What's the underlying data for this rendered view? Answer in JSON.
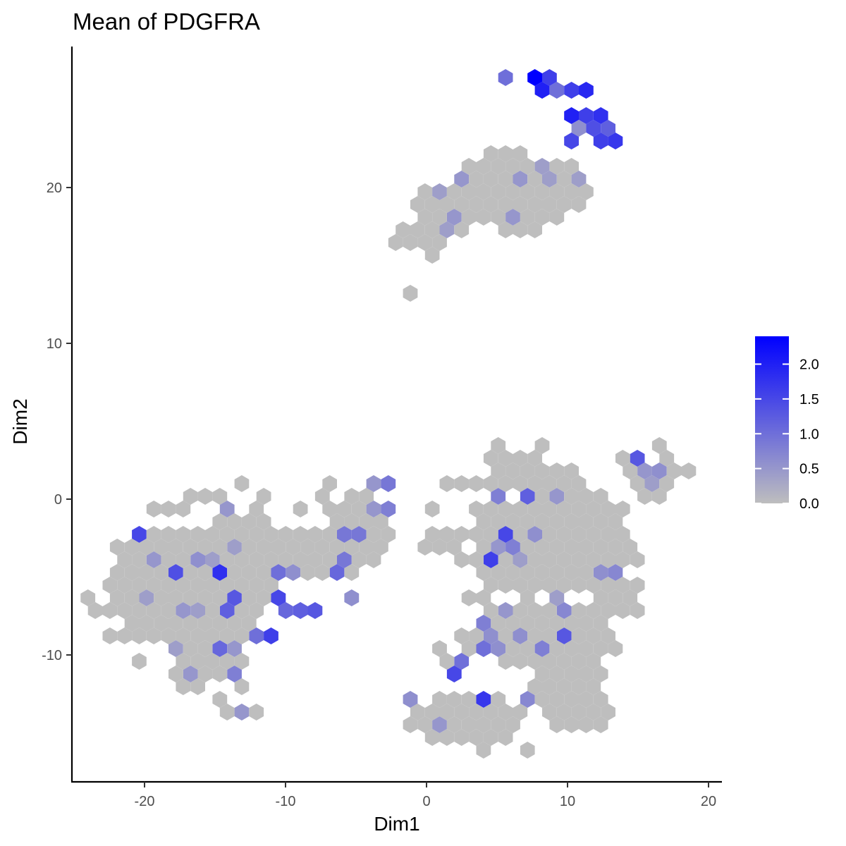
{
  "chart_data": {
    "type": "heatmap",
    "subtype": "hexbin",
    "title": "Mean of PDGFRA",
    "xlabel": "Dim1",
    "ylabel": "Dim2",
    "xlim": [
      -25.5,
      21
    ],
    "ylim": [
      -18,
      29
    ],
    "x_ticks": [
      -20,
      -10,
      0,
      10,
      20
    ],
    "y_ticks": [
      -10,
      0,
      10,
      20
    ],
    "grid": false,
    "legend": {
      "position": "right",
      "title": "",
      "min": 0,
      "max": 2.4,
      "ticks": [
        "0.0",
        "0.5",
        "1.0",
        "1.5",
        "2.0"
      ],
      "tick_values": [
        0,
        0.5,
        1.0,
        1.5,
        2.0
      ],
      "color_low": "#bebebe",
      "color_high": "#0000ff"
    },
    "hex_spacing": {
      "dx": 1.04,
      "dy": 1.0
    },
    "colored_hexes": [
      {
        "x": 6.0,
        "y": 27.0,
        "v": 1.0
      },
      {
        "x": 8.1,
        "y": 27.0,
        "v": 2.4
      },
      {
        "x": 9.1,
        "y": 27.0,
        "v": 1.6
      },
      {
        "x": 8.6,
        "y": 26.0,
        "v": 2.0
      },
      {
        "x": 9.6,
        "y": 26.0,
        "v": 1.0
      },
      {
        "x": 10.6,
        "y": 26.0,
        "v": 1.6
      },
      {
        "x": 11.7,
        "y": 26.0,
        "v": 1.9
      },
      {
        "x": 10.1,
        "y": 25.0,
        "v": 2.0
      },
      {
        "x": 11.2,
        "y": 25.0,
        "v": 1.6
      },
      {
        "x": 12.2,
        "y": 25.0,
        "v": 1.8
      },
      {
        "x": 10.6,
        "y": 24.0,
        "v": 0.6
      },
      {
        "x": 11.7,
        "y": 24.0,
        "v": 1.4
      },
      {
        "x": 12.7,
        "y": 24.0,
        "v": 1.2
      },
      {
        "x": 10.1,
        "y": 23.0,
        "v": 1.5
      },
      {
        "x": 12.2,
        "y": 23.0,
        "v": 1.6
      },
      {
        "x": 13.2,
        "y": 23.0,
        "v": 1.7
      },
      {
        "x": 15.2,
        "y": 2.6,
        "v": 1.3
      },
      {
        "x": 15.7,
        "y": 1.8,
        "v": 0.5
      },
      {
        "x": 16.7,
        "y": 1.8,
        "v": 0.6
      },
      {
        "x": 16.2,
        "y": 0.8,
        "v": 0.4
      },
      {
        "x": 5.3,
        "y": 0.0,
        "v": 0.8
      },
      {
        "x": 7.4,
        "y": 0.0,
        "v": 1.2
      },
      {
        "x": 9.5,
        "y": 0.0,
        "v": 0.5
      },
      {
        "x": 5.8,
        "y": -2.0,
        "v": 1.5
      },
      {
        "x": 7.9,
        "y": -2.0,
        "v": 0.6
      },
      {
        "x": 5.3,
        "y": -3.0,
        "v": 0.5
      },
      {
        "x": 6.3,
        "y": -3.0,
        "v": 0.8
      },
      {
        "x": 4.7,
        "y": -4.0,
        "v": 1.6
      },
      {
        "x": 6.8,
        "y": -4.0,
        "v": 0.4
      },
      {
        "x": 12.5,
        "y": -5.0,
        "v": 0.6
      },
      {
        "x": 13.5,
        "y": -5.0,
        "v": 0.7
      },
      {
        "x": 8.9,
        "y": -6.5,
        "v": 0.4
      },
      {
        "x": 9.4,
        "y": -7.0,
        "v": 0.7
      },
      {
        "x": 5.3,
        "y": -7.5,
        "v": 0.5
      },
      {
        "x": 4.2,
        "y": -8.0,
        "v": 0.8
      },
      {
        "x": 6.8,
        "y": -8.5,
        "v": 0.6
      },
      {
        "x": 9.4,
        "y": -8.5,
        "v": 1.3
      },
      {
        "x": 4.7,
        "y": -9.0,
        "v": 0.6
      },
      {
        "x": 4.2,
        "y": -9.5,
        "v": 1.0
      },
      {
        "x": 5.3,
        "y": -9.5,
        "v": 0.6
      },
      {
        "x": 8.4,
        "y": -9.5,
        "v": 0.8
      },
      {
        "x": 2.7,
        "y": -10.5,
        "v": 1.0
      },
      {
        "x": 2.2,
        "y": -11.5,
        "v": 1.5
      },
      {
        "x": 3.7,
        "y": -12.5,
        "v": 1.7
      },
      {
        "x": 1.7,
        "y": -11.5,
        "v": 0.5
      },
      {
        "x": 7.4,
        "y": -12.5,
        "v": 0.7
      },
      {
        "x": -0.9,
        "y": -12.5,
        "v": 0.6
      },
      {
        "x": 0.7,
        "y": -14.5,
        "v": 0.5
      },
      {
        "x": -20.5,
        "y": -2.0,
        "v": 1.5
      },
      {
        "x": -19.0,
        "y": -3.5,
        "v": 0.5
      },
      {
        "x": -18.0,
        "y": -5.0,
        "v": 1.4
      },
      {
        "x": -16.5,
        "y": -3.5,
        "v": 0.6
      },
      {
        "x": -15.0,
        "y": -5.0,
        "v": 1.8
      },
      {
        "x": -15.5,
        "y": -4.0,
        "v": 0.4
      },
      {
        "x": -14.5,
        "y": -1.0,
        "v": 0.5
      },
      {
        "x": -13.5,
        "y": -3.0,
        "v": 0.4
      },
      {
        "x": -19.5,
        "y": -6.0,
        "v": 0.4
      },
      {
        "x": -17.5,
        "y": -7.0,
        "v": 0.5
      },
      {
        "x": -16.0,
        "y": -7.0,
        "v": 0.4
      },
      {
        "x": -13.5,
        "y": -6.5,
        "v": 1.3
      },
      {
        "x": -14.0,
        "y": -7.5,
        "v": 1.2
      },
      {
        "x": -12.0,
        "y": -8.5,
        "v": 1.0
      },
      {
        "x": -11.0,
        "y": -8.5,
        "v": 1.6
      },
      {
        "x": -14.5,
        "y": -9.5,
        "v": 1.1
      },
      {
        "x": -13.5,
        "y": -9.5,
        "v": 0.5
      },
      {
        "x": -17.5,
        "y": -9.5,
        "v": 0.4
      },
      {
        "x": -14.0,
        "y": -11.5,
        "v": 0.8
      },
      {
        "x": -17.0,
        "y": -11.5,
        "v": 0.5
      },
      {
        "x": -13.5,
        "y": -13.5,
        "v": 0.5
      },
      {
        "x": -11.0,
        "y": -6.0,
        "v": 1.5
      },
      {
        "x": -10.5,
        "y": -5.0,
        "v": 1.0
      },
      {
        "x": -9.5,
        "y": -5.0,
        "v": 0.6
      },
      {
        "x": -10.0,
        "y": -7.0,
        "v": 1.1
      },
      {
        "x": -9.0,
        "y": -7.0,
        "v": 1.2
      },
      {
        "x": -8.0,
        "y": -7.0,
        "v": 1.3
      },
      {
        "x": -6.0,
        "y": -2.0,
        "v": 0.9
      },
      {
        "x": -5.0,
        "y": -2.0,
        "v": 0.9
      },
      {
        "x": -5.5,
        "y": -4.0,
        "v": 0.9
      },
      {
        "x": -6.0,
        "y": -5.0,
        "v": 1.1
      },
      {
        "x": -5.5,
        "y": -6.0,
        "v": 0.6
      },
      {
        "x": -3.5,
        "y": -1.0,
        "v": 0.5
      },
      {
        "x": -2.5,
        "y": -1.0,
        "v": 0.8
      },
      {
        "x": -3.5,
        "y": 0.8,
        "v": 0.5
      },
      {
        "x": -2.5,
        "y": 0.8,
        "v": 0.9
      },
      {
        "x": 2.5,
        "y": 20.5,
        "v": 0.5
      },
      {
        "x": 1.0,
        "y": 19.5,
        "v": 0.4
      },
      {
        "x": 1.5,
        "y": 18.5,
        "v": 0.5
      },
      {
        "x": 1.0,
        "y": 17.5,
        "v": 0.4
      },
      {
        "x": 6.5,
        "y": 20.5,
        "v": 0.5
      },
      {
        "x": 8.5,
        "y": 20.5,
        "v": 0.4
      },
      {
        "x": 6.5,
        "y": 18.5,
        "v": 0.5
      },
      {
        "x": 8.0,
        "y": 21.0,
        "v": 0.4
      },
      {
        "x": 10.5,
        "y": 20.5,
        "v": 0.4
      }
    ],
    "gray_regions": [
      {
        "cx": 6.5,
        "cy": 19.5,
        "rx": 4.2,
        "ry": 2.1,
        "angle": 0
      },
      {
        "cx": 2.0,
        "cy": 18.5,
        "rx": 2.8,
        "ry": 1.3,
        "angle": 0
      },
      {
        "cx": -1.0,
        "cy": 16.8,
        "rx": 1.6,
        "ry": 0.9,
        "angle": 0
      },
      {
        "cx": 9.8,
        "cy": 20.6,
        "rx": 1.6,
        "ry": 1.0,
        "angle": 0
      },
      {
        "cx": 5.5,
        "cy": 22.1,
        "rx": 1.0,
        "ry": 0.6,
        "angle": 0
      },
      {
        "cx": -17.0,
        "cy": -5.5,
        "rx": 5.8,
        "ry": 3.6,
        "angle": 0
      },
      {
        "cx": -13.5,
        "cy": -4.0,
        "rx": 3.2,
        "ry": 3.2,
        "angle": 0
      },
      {
        "cx": -15.5,
        "cy": -9.8,
        "rx": 2.6,
        "ry": 1.8,
        "angle": 0
      },
      {
        "cx": -9.5,
        "cy": -3.6,
        "rx": 2.8,
        "ry": 1.8,
        "angle": 0
      },
      {
        "cx": -7.0,
        "cy": -3.8,
        "rx": 2.2,
        "ry": 1.6,
        "angle": 0
      },
      {
        "cx": -5.0,
        "cy": -1.5,
        "rx": 2.0,
        "ry": 1.6,
        "angle": 0
      },
      {
        "cx": -4.0,
        "cy": -3.0,
        "rx": 1.5,
        "ry": 1.2,
        "angle": 0
      },
      {
        "cx": -20.5,
        "cy": -6.0,
        "rx": 2.2,
        "ry": 1.6,
        "angle": 0
      },
      {
        "cx": 7.0,
        "cy": -3.0,
        "rx": 3.8,
        "ry": 3.0,
        "angle": 0
      },
      {
        "cx": 11.0,
        "cy": -2.5,
        "rx": 3.3,
        "ry": 3.0,
        "angle": 0
      },
      {
        "cx": 9.0,
        "cy": 0.5,
        "rx": 2.2,
        "ry": 2.0,
        "angle": 0
      },
      {
        "cx": 6.5,
        "cy": 2.0,
        "rx": 1.7,
        "ry": 1.0,
        "angle": 0
      },
      {
        "cx": 6.0,
        "cy": -8.5,
        "rx": 2.6,
        "ry": 1.7,
        "angle": 0
      },
      {
        "cx": 10.0,
        "cy": -11.0,
        "rx": 2.6,
        "ry": 2.6,
        "angle": 0
      },
      {
        "cx": 10.5,
        "cy": -8.0,
        "rx": 2.2,
        "ry": 1.5,
        "angle": 0
      },
      {
        "cx": 3.0,
        "cy": -14.0,
        "rx": 3.5,
        "ry": 1.3,
        "angle": 0
      },
      {
        "cx": 5.0,
        "cy": -15.0,
        "rx": 1.3,
        "ry": 1.0,
        "angle": 0
      },
      {
        "cx": 10.5,
        "cy": -13.5,
        "rx": 2.2,
        "ry": 1.0,
        "angle": 0
      },
      {
        "cx": 16.0,
        "cy": 1.5,
        "rx": 1.7,
        "ry": 1.0,
        "angle": 0
      },
      {
        "cx": 0.5,
        "cy": -3.0,
        "rx": 1.2,
        "ry": 0.8,
        "angle": 0
      },
      {
        "cx": 13.5,
        "cy": -6.0,
        "rx": 1.8,
        "ry": 1.2,
        "angle": 0
      }
    ],
    "gray_hexes": [
      {
        "x": -0.8,
        "y": 13.0
      },
      {
        "x": -2.0,
        "y": 16.8
      },
      {
        "x": 0.0,
        "y": 15.8
      },
      {
        "x": 0.5,
        "y": 17.6
      },
      {
        "x": 2.6,
        "y": 21.4
      },
      {
        "x": 4.2,
        "y": 21.0
      },
      {
        "x": 4.7,
        "y": 22.0
      },
      {
        "x": 6.3,
        "y": 22.0
      },
      {
        "x": 7.3,
        "y": 21.0
      },
      {
        "x": 8.9,
        "y": 21.0
      },
      {
        "x": 10.5,
        "y": 21.0
      },
      {
        "x": 11.0,
        "y": 20.0
      },
      {
        "x": 9.4,
        "y": 19.0
      },
      {
        "x": 6.3,
        "y": 17.5
      },
      {
        "x": 5.7,
        "y": 18.0
      },
      {
        "x": 3.6,
        "y": 18.2
      },
      {
        "x": 1.0,
        "y": 16.5
      },
      {
        "x": -0.2,
        "y": 18.4
      },
      {
        "x": -22.0,
        "y": -3.0
      },
      {
        "x": -23.5,
        "y": -6.5
      },
      {
        "x": -24.0,
        "y": -7.0
      },
      {
        "x": -22.0,
        "y": -9.0
      },
      {
        "x": -20.0,
        "y": -10.5
      },
      {
        "x": -21.0,
        "y": -8.5
      },
      {
        "x": -17.0,
        "y": -12.0
      },
      {
        "x": -16.0,
        "y": -12.0
      },
      {
        "x": -15.0,
        "y": -12.5
      },
      {
        "x": -14.5,
        "y": -13.5
      },
      {
        "x": -13.5,
        "y": -12.0
      },
      {
        "x": -12.5,
        "y": -13.5
      },
      {
        "x": -13.5,
        "y": 0.8
      },
      {
        "x": -14.5,
        "y": 0.0
      },
      {
        "x": -15.5,
        "y": 0.0
      },
      {
        "x": -16.5,
        "y": 0.0
      },
      {
        "x": -17.5,
        "y": -0.8
      },
      {
        "x": -18.5,
        "y": -0.8
      },
      {
        "x": -19.5,
        "y": -0.8
      },
      {
        "x": -11.5,
        "y": 0.0
      },
      {
        "x": -12.5,
        "y": -1.0
      },
      {
        "x": -10.5,
        "y": -2.0
      },
      {
        "x": -8.5,
        "y": -3.0
      },
      {
        "x": -7.5,
        "y": -3.0
      },
      {
        "x": -6.5,
        "y": -4.0
      },
      {
        "x": -7.0,
        "y": -5.0
      },
      {
        "x": -8.0,
        "y": -5.0
      },
      {
        "x": -8.5,
        "y": -0.8
      },
      {
        "x": -7.5,
        "y": 0.0
      },
      {
        "x": -6.5,
        "y": 0.8
      },
      {
        "x": -5.5,
        "y": 0.0
      },
      {
        "x": -4.5,
        "y": 0.0
      },
      {
        "x": -4.0,
        "y": -3.0
      },
      {
        "x": -4.5,
        "y": -4.0
      },
      {
        "x": -3.5,
        "y": -2.0
      },
      {
        "x": 0.7,
        "y": -1.0
      },
      {
        "x": 1.4,
        "y": 0.8
      },
      {
        "x": 2.4,
        "y": 0.8
      },
      {
        "x": 3.5,
        "y": 0.8
      },
      {
        "x": 4.5,
        "y": 0.8
      },
      {
        "x": 5.0,
        "y": 3.4
      },
      {
        "x": 4.5,
        "y": 2.6
      },
      {
        "x": 5.5,
        "y": 2.6
      },
      {
        "x": 6.5,
        "y": 2.6
      },
      {
        "x": 7.5,
        "y": 2.6
      },
      {
        "x": 8.5,
        "y": 3.4
      },
      {
        "x": 8.0,
        "y": 1.8
      },
      {
        "x": 9.0,
        "y": 1.8
      },
      {
        "x": 10.0,
        "y": 0.8
      },
      {
        "x": 11.0,
        "y": 0.8
      },
      {
        "x": 12.0,
        "y": -0.8
      },
      {
        "x": 13.0,
        "y": -1.8
      },
      {
        "x": 14.0,
        "y": -2.0
      },
      {
        "x": 14.5,
        "y": -3.0
      },
      {
        "x": 15.0,
        "y": -4.0
      },
      {
        "x": 14.0,
        "y": -6.5
      },
      {
        "x": 14.5,
        "y": -7.0
      },
      {
        "x": 15.0,
        "y": -7.5
      },
      {
        "x": 13.5,
        "y": -9.5
      },
      {
        "x": 12.5,
        "y": -9.5
      },
      {
        "x": 12.0,
        "y": -11.5
      },
      {
        "x": 12.5,
        "y": -12.5
      },
      {
        "x": 11.5,
        "y": -13.0
      },
      {
        "x": 11.0,
        "y": -14.5
      },
      {
        "x": 9.0,
        "y": -14.5
      },
      {
        "x": 8.5,
        "y": -13.5
      },
      {
        "x": 7.0,
        "y": -16.0
      },
      {
        "x": 5.5,
        "y": -14.5
      },
      {
        "x": 4.5,
        "y": -16.0
      },
      {
        "x": 2.5,
        "y": -14.5
      },
      {
        "x": 1.5,
        "y": -13.5
      },
      {
        "x": -0.5,
        "y": -13.5
      },
      {
        "x": -1.5,
        "y": -14.5
      },
      {
        "x": 0.0,
        "y": -15.2
      },
      {
        "x": 1.0,
        "y": -9.5
      },
      {
        "x": 1.5,
        "y": -10.5
      },
      {
        "x": 2.7,
        "y": -9.5
      },
      {
        "x": 3.0,
        "y": -8.5
      },
      {
        "x": 2.8,
        "y": -6.5
      },
      {
        "x": 6.3,
        "y": -5.5
      },
      {
        "x": 6.8,
        "y": -6.5
      },
      {
        "x": 4.2,
        "y": -6.5
      },
      {
        "x": 3.7,
        "y": -5.0
      },
      {
        "x": 2.6,
        "y": -4.0
      },
      {
        "x": 1.6,
        "y": -3.0
      },
      {
        "x": 2.6,
        "y": -2.0
      },
      {
        "x": 3.1,
        "y": -1.0
      },
      {
        "x": 16.0,
        "y": 3.4
      },
      {
        "x": 14.5,
        "y": 2.6
      },
      {
        "x": 14.0,
        "y": 2.6
      },
      {
        "x": 17.0,
        "y": 2.6
      },
      {
        "x": 17.5,
        "y": 0.8
      },
      {
        "x": 16.5,
        "y": 0.0
      },
      {
        "x": 15.5,
        "y": 0.0
      },
      {
        "x": 19.0,
        "y": 1.8
      }
    ]
  }
}
